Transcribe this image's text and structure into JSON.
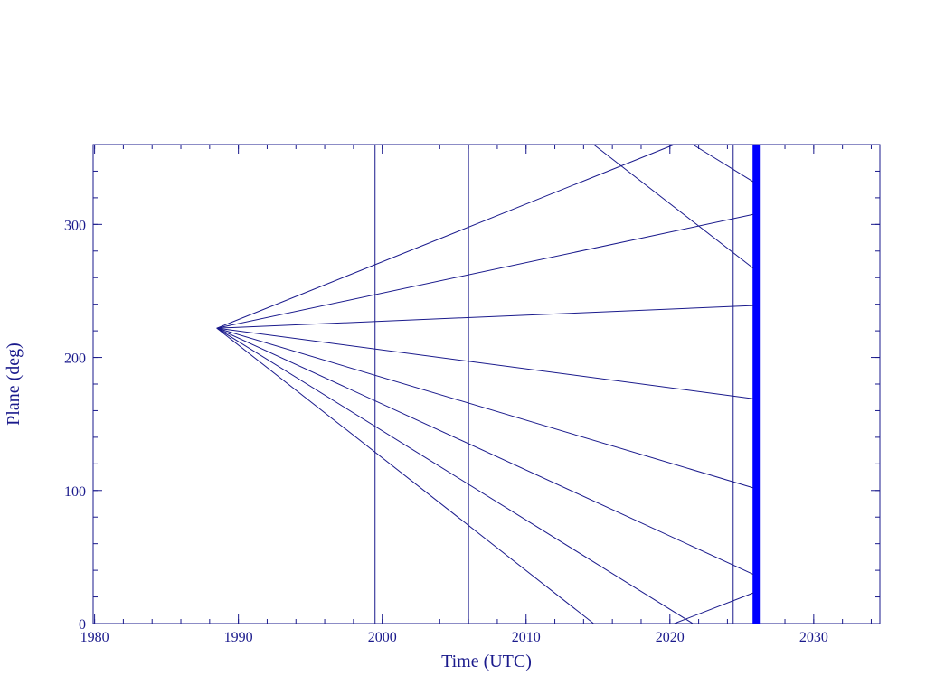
{
  "chart_data": {
    "type": "line",
    "x_label": "Time (UTC)",
    "y_label": "Plane (deg)",
    "xlim": [
      1979.9,
      2034.6
    ],
    "ylim": [
      0,
      360
    ],
    "xticks": [
      1980,
      1990,
      2000,
      2010,
      2020,
      2030
    ],
    "yticks": [
      0,
      100,
      200,
      300
    ],
    "xminor": 2,
    "yminor": 20,
    "color": "#1a1a8c",
    "vlines": [
      1999.5,
      2006.0,
      2024.4
    ],
    "highlight_x": 2026.0,
    "highlight_color": "#0000ff",
    "series": [
      {
        "x": [
          1988.5,
          2025.8
        ],
        "values": [
          222,
          239
        ]
      },
      {
        "x": [
          1988.5,
          2025.8
        ],
        "values": [
          222,
          307.5
        ]
      },
      {
        "x": [
          1988.5,
          2025.8
        ],
        "values": [
          222,
          169
        ]
      },
      {
        "x": [
          1988.5,
          2025.8
        ],
        "values": [
          222,
          102
        ]
      },
      {
        "x": [
          1988.5,
          2025.8
        ],
        "values": [
          222,
          37
        ]
      },
      {
        "x": [
          1988.5,
          2014.7,
          2014.7,
          2014.7,
          2025.8
        ],
        "values": [
          222,
          0,
          null,
          360,
          267
        ]
      },
      {
        "x": [
          1988.5,
          2021.6,
          2021.6,
          2021.6,
          2025.8
        ],
        "values": [
          222,
          0,
          null,
          360,
          332
        ]
      },
      {
        "x": [
          1988.5,
          2020.3,
          2020.3,
          2020.3,
          2025.8
        ],
        "values": [
          222,
          360,
          null,
          0,
          23
        ]
      }
    ]
  }
}
